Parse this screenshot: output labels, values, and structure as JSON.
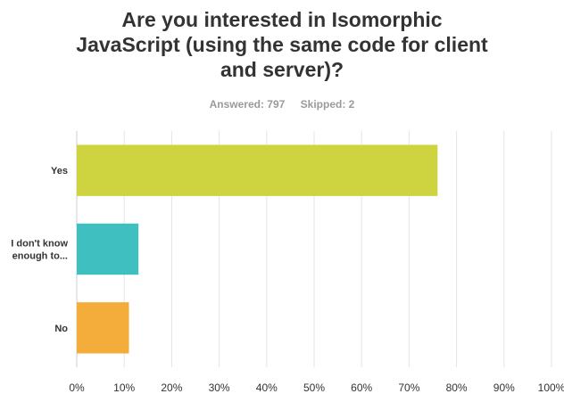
{
  "title_lines": [
    "Are you interested in Isomorphic",
    "JavaScript (using the same code for client",
    "and server)?"
  ],
  "stats": {
    "answered": "Answered: 797",
    "skipped": "Skipped: 2"
  },
  "chart_data": {
    "type": "bar",
    "orientation": "horizontal",
    "title": "Are you interested in Isomorphic JavaScript (using the same code for client and server)?",
    "categories": [
      [
        "Yes"
      ],
      [
        "I don't know",
        "enough to..."
      ],
      [
        "No"
      ]
    ],
    "values": [
      76,
      13,
      11
    ],
    "value_unit": "percent",
    "colors": [
      "#cdd43f",
      "#3fbfc0",
      "#f4ac3a"
    ],
    "xlim": [
      0,
      100
    ],
    "x_ticks": [
      "0%",
      "10%",
      "20%",
      "30%",
      "40%",
      "50%",
      "60%",
      "70%",
      "80%",
      "90%",
      "100%"
    ],
    "grid": "vertical",
    "legend": "none"
  }
}
